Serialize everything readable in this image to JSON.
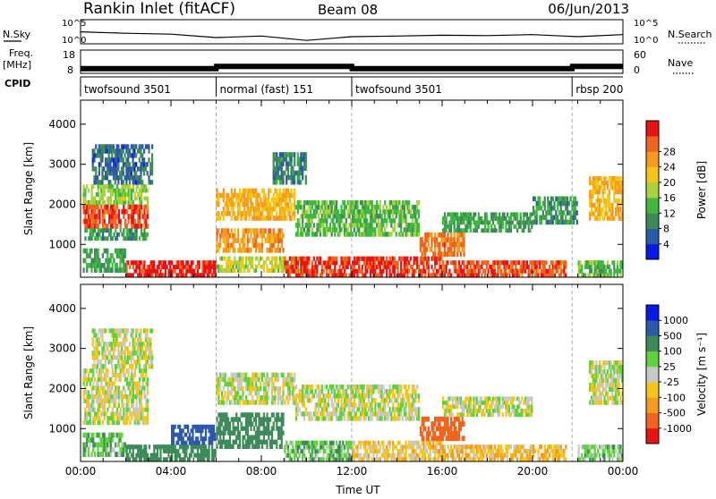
{
  "header": {
    "station": "Rankin Inlet (fitACF)",
    "beam": "Beam 08",
    "date": "06/Jun/2013"
  },
  "strips": {
    "nsky_label": "N.Sky",
    "nsky_ticks": [
      "10^5",
      "10^0"
    ],
    "nsearch_label": "N.Search",
    "nsearch_ticks": [
      "10^5",
      "10^0"
    ],
    "freq_label": "Freq.",
    "freq_unit": "[MHz]",
    "freq_ticks": [
      "18",
      "8"
    ],
    "nave_label": "Nave",
    "nave_ticks": [
      "60",
      "0"
    ],
    "cpid_label": "CPID"
  },
  "colors": {
    "power": [
      "#0a18e6",
      "#2d5aa8",
      "#3f8a5a",
      "#3fb83f",
      "#a8d23c",
      "#f5c518",
      "#f59b1e",
      "#f0641e",
      "#e61414"
    ],
    "velocity": [
      "#e61414",
      "#f0641e",
      "#f59b1e",
      "#f5c518",
      "#c8c8c8",
      "#5fd23c",
      "#3f8a5a",
      "#2d5aa8",
      "#0a18e6"
    ]
  },
  "chart_data": [
    {
      "type": "line",
      "name": "N.Sky",
      "scale": "log",
      "ylim": [
        1,
        100000
      ],
      "x": [
        "00:00",
        "02:00",
        "04:00",
        "06:00",
        "08:00",
        "10:00",
        "12:00",
        "14:00",
        "16:00",
        "18:00",
        "20:00",
        "22:00",
        "24:00"
      ],
      "values": [
        300,
        150,
        100,
        20,
        40,
        5,
        30,
        40,
        60,
        50,
        80,
        30,
        80
      ]
    },
    {
      "type": "line",
      "name": "Freq.",
      "ylim": [
        8,
        18
      ],
      "x": [
        "00:00",
        "06:00",
        "06:01",
        "12:00",
        "12:01",
        "21:45",
        "21:46",
        "24:00"
      ],
      "values": [
        10,
        10,
        11,
        11,
        10,
        10,
        11,
        11
      ]
    },
    {
      "type": "table",
      "name": "CPID",
      "segments": [
        {
          "start": "00:00",
          "end": "06:00",
          "label": "twofsound 3501"
        },
        {
          "start": "06:00",
          "end": "12:00",
          "label": "normal (fast) 151"
        },
        {
          "start": "12:00",
          "end": "21:45",
          "label": "twofsound 3501"
        },
        {
          "start": "21:45",
          "end": "24:00",
          "label": "rbsp 200"
        }
      ]
    },
    {
      "type": "heatmap",
      "title": "",
      "ylabel": "Slant Range [km]",
      "ylim": [
        180,
        4600
      ],
      "yticks": [
        "1000",
        "2000",
        "3000",
        "4000"
      ],
      "xlabel": "",
      "colorbar": {
        "label": "Power [dB]",
        "ticks": [
          "4",
          "8",
          "12",
          "16",
          "20",
          "24",
          "28"
        ],
        "range": [
          0,
          30
        ]
      },
      "blobs": [
        {
          "t0": 0.1,
          "t1": 3.0,
          "r0": 1400,
          "r1": 2000,
          "v": 26
        },
        {
          "t0": 0.1,
          "t1": 3.0,
          "r0": 2000,
          "r1": 2500,
          "v": 14
        },
        {
          "t0": 0.1,
          "t1": 3.0,
          "r0": 1100,
          "r1": 1400,
          "v": 9
        },
        {
          "t0": 0.5,
          "t1": 3.2,
          "r0": 2500,
          "r1": 3500,
          "v": 6
        },
        {
          "t0": 2.0,
          "t1": 6.0,
          "r0": 180,
          "r1": 600,
          "v": 28
        },
        {
          "t0": 0.1,
          "t1": 2.0,
          "r0": 300,
          "r1": 900,
          "v": 10
        },
        {
          "t0": 6.0,
          "t1": 9.5,
          "r0": 1600,
          "r1": 2400,
          "v": 20
        },
        {
          "t0": 6.0,
          "t1": 9.0,
          "r0": 800,
          "r1": 1400,
          "v": 22
        },
        {
          "t0": 6.0,
          "t1": 10.0,
          "r0": 300,
          "r1": 700,
          "v": 16
        },
        {
          "t0": 8.5,
          "t1": 10.0,
          "r0": 2500,
          "r1": 3300,
          "v": 8
        },
        {
          "t0": 9.5,
          "t1": 15.0,
          "r0": 1200,
          "r1": 2100,
          "v": 12
        },
        {
          "t0": 9.0,
          "t1": 16.0,
          "r0": 180,
          "r1": 700,
          "v": 27
        },
        {
          "t0": 15.0,
          "t1": 17.0,
          "r0": 700,
          "r1": 1300,
          "v": 24
        },
        {
          "t0": 16.0,
          "t1": 21.5,
          "r0": 180,
          "r1": 600,
          "v": 26
        },
        {
          "t0": 16.0,
          "t1": 20.0,
          "r0": 1300,
          "r1": 1800,
          "v": 10
        },
        {
          "t0": 20.0,
          "t1": 22.0,
          "r0": 1500,
          "r1": 2200,
          "v": 9
        },
        {
          "t0": 22.5,
          "t1": 24.0,
          "r0": 1600,
          "r1": 2700,
          "v": 20
        },
        {
          "t0": 22.0,
          "t1": 24.0,
          "r0": 180,
          "r1": 600,
          "v": 12
        }
      ]
    },
    {
      "type": "heatmap",
      "title": "",
      "ylabel": "Slant Range [km]",
      "ylim": [
        180,
        4600
      ],
      "yticks": [
        "1000",
        "2000",
        "3000",
        "4000"
      ],
      "xlabel": "Time UT",
      "xticks": [
        "00:00",
        "04:00",
        "08:00",
        "12:00",
        "16:00",
        "20:00",
        "00:00"
      ],
      "colorbar": {
        "label": "Velocity [m s⁻¹]",
        "ticks": [
          "-1000",
          "-500",
          "-100",
          "-25",
          "25",
          "100",
          "500",
          "1000"
        ],
        "range": [
          -1000,
          1000
        ]
      },
      "blobs": [
        {
          "t0": 0.1,
          "t1": 3.0,
          "r0": 1100,
          "r1": 2500,
          "v": 0
        },
        {
          "t0": 0.5,
          "t1": 3.2,
          "r0": 2500,
          "r1": 3500,
          "v": 0
        },
        {
          "t0": 0.1,
          "t1": 2.0,
          "r0": 300,
          "r1": 900,
          "v": 80
        },
        {
          "t0": 2.0,
          "t1": 6.0,
          "r0": 180,
          "r1": 600,
          "v": 200
        },
        {
          "t0": 4.0,
          "t1": 6.0,
          "r0": 600,
          "r1": 1100,
          "v": 700
        },
        {
          "t0": 6.0,
          "t1": 9.5,
          "r0": 1600,
          "r1": 2400,
          "v": 0
        },
        {
          "t0": 6.0,
          "t1": 9.0,
          "r0": 500,
          "r1": 1400,
          "v": 300
        },
        {
          "t0": 9.5,
          "t1": 15.0,
          "r0": 1200,
          "r1": 2100,
          "v": 0
        },
        {
          "t0": 9.0,
          "t1": 12.0,
          "r0": 180,
          "r1": 700,
          "v": 80
        },
        {
          "t0": 12.0,
          "t1": 16.0,
          "r0": 180,
          "r1": 700,
          "v": -60
        },
        {
          "t0": 15.0,
          "t1": 17.0,
          "r0": 700,
          "r1": 1300,
          "v": -700
        },
        {
          "t0": 16.0,
          "t1": 21.5,
          "r0": 180,
          "r1": 600,
          "v": -80
        },
        {
          "t0": 16.0,
          "t1": 20.0,
          "r0": 1300,
          "r1": 1800,
          "v": 0
        },
        {
          "t0": 22.5,
          "t1": 24.0,
          "r0": 1600,
          "r1": 2700,
          "v": 0
        },
        {
          "t0": 22.0,
          "t1": 24.0,
          "r0": 180,
          "r1": 600,
          "v": 60
        }
      ]
    }
  ]
}
